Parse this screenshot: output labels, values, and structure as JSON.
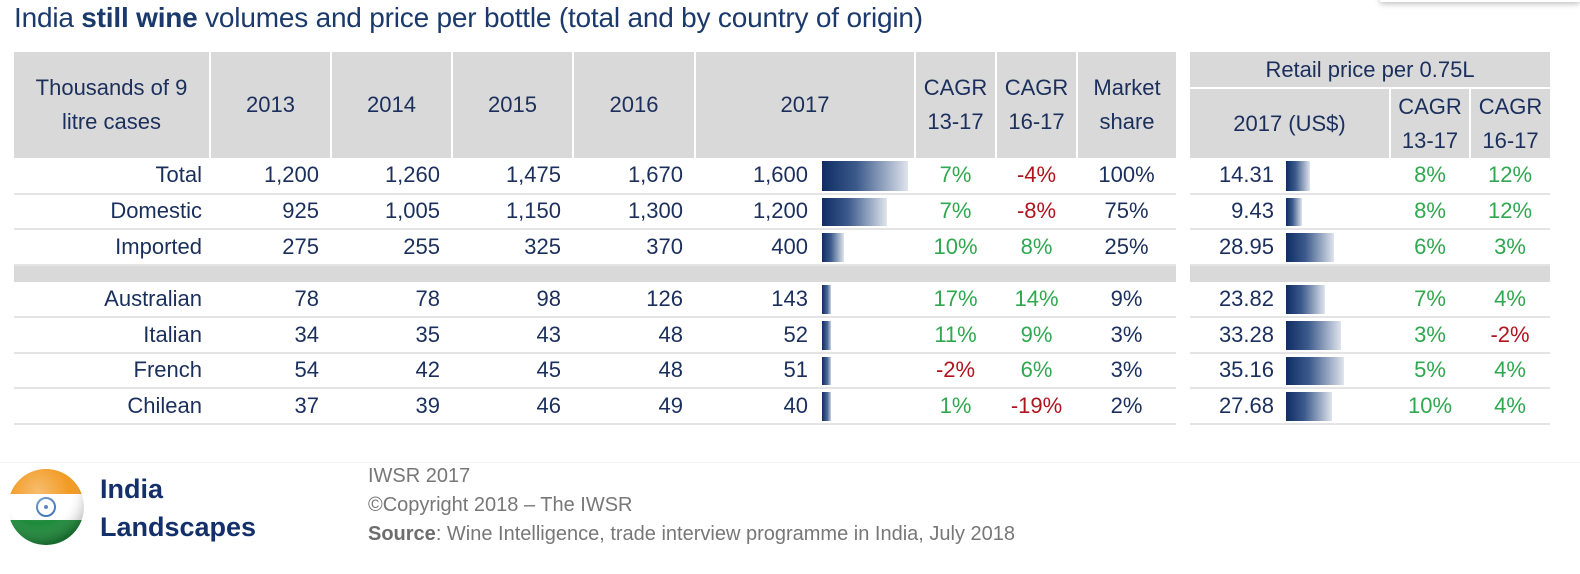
{
  "title": {
    "prefix": "India ",
    "bold": "still wine",
    "suffix": " volumes and price per bottle (total and by country of origin)"
  },
  "volume_table": {
    "header": {
      "label": "Thousands of 9 litre cases",
      "years": [
        "2013",
        "2014",
        "2015",
        "2016",
        "2017"
      ],
      "cagr_13_17": "CAGR 13-17",
      "cagr_16_17": "CAGR 16-17",
      "market_share": "Market share"
    },
    "bar_scale_max": 1600,
    "groups": [
      [
        {
          "name": "Total",
          "values": [
            "1,200",
            "1,260",
            "1,475",
            "1,670",
            "1,600"
          ],
          "v2017": 1600,
          "cagr_13_17": "7%",
          "cagr_16_17": "-4%",
          "share": "100%"
        },
        {
          "name": "Domestic",
          "values": [
            "925",
            "1,005",
            "1,150",
            "1,300",
            "1,200"
          ],
          "v2017": 1200,
          "cagr_13_17": "7%",
          "cagr_16_17": "-8%",
          "share": "75%"
        },
        {
          "name": "Imported",
          "values": [
            "275",
            "255",
            "325",
            "370",
            "400"
          ],
          "v2017": 400,
          "cagr_13_17": "10%",
          "cagr_16_17": "8%",
          "share": "25%"
        }
      ],
      [
        {
          "name": "Australian",
          "values": [
            "78",
            "78",
            "98",
            "126",
            "143"
          ],
          "v2017": 143,
          "cagr_13_17": "17%",
          "cagr_16_17": "14%",
          "share": "9%"
        },
        {
          "name": "Italian",
          "values": [
            "34",
            "35",
            "43",
            "48",
            "52"
          ],
          "v2017": 52,
          "cagr_13_17": "11%",
          "cagr_16_17": "9%",
          "share": "3%"
        },
        {
          "name": "French",
          "values": [
            "54",
            "42",
            "45",
            "48",
            "51"
          ],
          "v2017": 51,
          "cagr_13_17": "-2%",
          "cagr_16_17": "6%",
          "share": "3%"
        },
        {
          "name": "Chilean",
          "values": [
            "37",
            "39",
            "46",
            "49",
            "40"
          ],
          "v2017": 40,
          "cagr_13_17": "1%",
          "cagr_16_17": "-19%",
          "share": "2%"
        }
      ]
    ]
  },
  "price_table": {
    "header": {
      "group": "Retail price per 0.75L",
      "price_2017": "2017 (US$)",
      "cagr_13_17": "CAGR 13-17",
      "cagr_16_17": "CAGR 16-17"
    },
    "bar_scale_max": 35.16,
    "groups": [
      [
        {
          "price": "14.31",
          "value": 14.31,
          "cagr_13_17": "8%",
          "cagr_16_17": "12%"
        },
        {
          "price": "9.43",
          "value": 9.43,
          "cagr_13_17": "8%",
          "cagr_16_17": "12%"
        },
        {
          "price": "28.95",
          "value": 28.95,
          "cagr_13_17": "6%",
          "cagr_16_17": "3%"
        }
      ],
      [
        {
          "price": "23.82",
          "value": 23.82,
          "cagr_13_17": "7%",
          "cagr_16_17": "4%"
        },
        {
          "price": "33.28",
          "value": 33.28,
          "cagr_13_17": "3%",
          "cagr_16_17": "-2%"
        },
        {
          "price": "35.16",
          "value": 35.16,
          "cagr_13_17": "5%",
          "cagr_16_17": "4%"
        },
        {
          "price": "27.68",
          "value": 27.68,
          "cagr_13_17": "10%",
          "cagr_16_17": "4%"
        }
      ]
    ]
  },
  "colors": {
    "positive": "#2fa84f",
    "negative": "#b0141e",
    "text": "#1b2f5c",
    "header_bg": "#d9d9d9",
    "bar_dark": "#0e2d63"
  },
  "footer": {
    "brand_line1": "India",
    "brand_line2": "Landscapes",
    "logo_icon": "india-flag-icon",
    "line1": "IWSR 2017",
    "line2": "©Copyright 2018 – The IWSR",
    "source_label": "Source",
    "source_text": ": Wine Intelligence, trade interview programme in India, July 2018"
  }
}
